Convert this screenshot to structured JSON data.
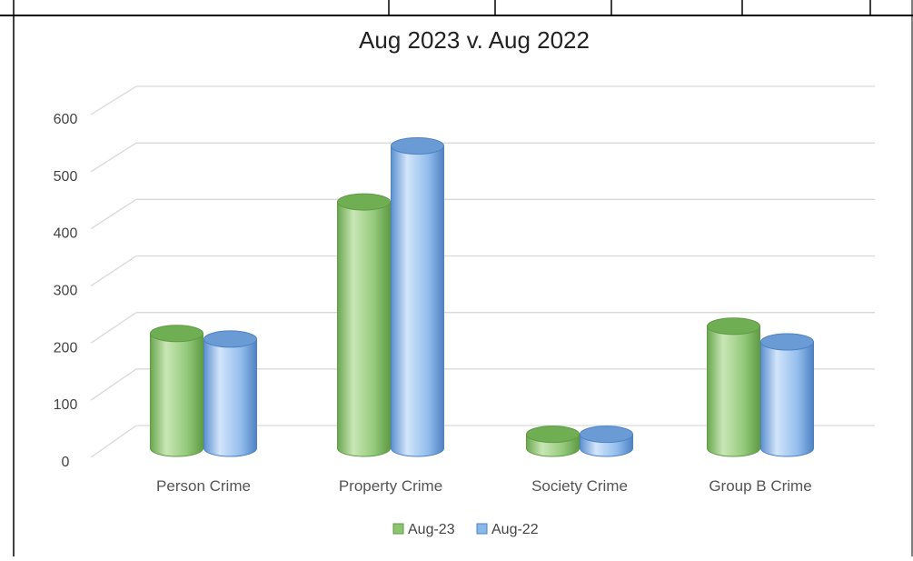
{
  "chart_data": {
    "type": "bar",
    "title": "Aug 2023 v. Aug 2022",
    "xlabel": "",
    "ylabel": "",
    "categories": [
      "Person Crime",
      "Property Crime",
      "Society Crime",
      "Group B Crime"
    ],
    "series": [
      {
        "name": "Aug-23",
        "values": [
          205,
          440,
          25,
          218
        ],
        "color": "#8cc572"
      },
      {
        "name": "Aug-22",
        "values": [
          195,
          540,
          25,
          190
        ],
        "color": "#8ab8e8"
      }
    ],
    "yticks": [
      0,
      100,
      200,
      300,
      400,
      500,
      600
    ],
    "ylim": [
      0,
      600
    ],
    "grid": true,
    "legend": "bottom",
    "style": "3d-cylinder"
  }
}
